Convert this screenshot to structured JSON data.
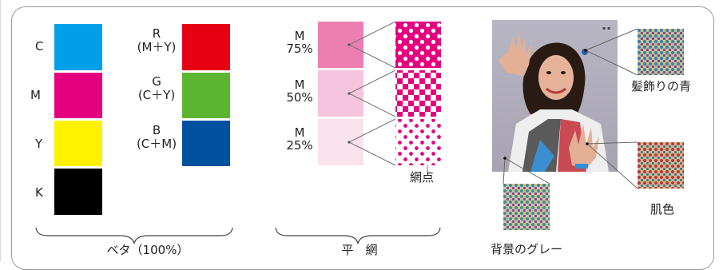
{
  "solid_section": {
    "caption": "ベタ（100%）",
    "process": [
      {
        "label": "C",
        "color": "#00a0e9"
      },
      {
        "label": "M",
        "color": "#e4007f"
      },
      {
        "label": "Y",
        "color": "#fff100"
      },
      {
        "label": "K",
        "color": "#000000"
      }
    ],
    "secondary": [
      {
        "name": "R",
        "mix": "(M＋Y)",
        "color": "#e60012"
      },
      {
        "name": "G",
        "mix": "(C＋Y)",
        "color": "#5cb531"
      },
      {
        "name": "B",
        "mix": "(C＋M)",
        "color": "#0050a0"
      }
    ]
  },
  "halftone_section": {
    "caption": "平　網",
    "dot_label": "網点",
    "ink_color": "#e4007f",
    "tints": [
      {
        "name": "M",
        "percent": "75%",
        "fill": "#ec7fb0"
      },
      {
        "name": "M",
        "percent": "50%",
        "fill": "#f6c4dc"
      },
      {
        "name": "M",
        "percent": "25%",
        "fill": "#fbe3ee"
      }
    ]
  },
  "photo_section": {
    "callouts": {
      "hair_ornament": "髪飾りの青",
      "skin": "肌色",
      "background": "背景のグレー"
    }
  }
}
